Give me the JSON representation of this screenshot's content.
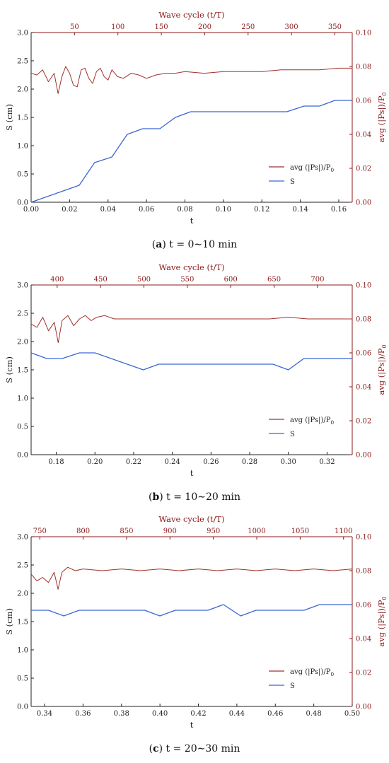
{
  "colors": {
    "pressure": "#a0302a",
    "settlement": "#3a66d6",
    "axis_red": "#8b1a1a",
    "axis": "#222222"
  },
  "chart_data": [
    {
      "type": "line",
      "caption": {
        "label": "a",
        "formula": "t = 0∼10 min"
      },
      "xlabel": "t",
      "x2label": "Wave cycle (t/T)",
      "ylabel": "S (cm)",
      "y2label": "avg (|Ps|)/P",
      "y2label_sub": "0",
      "xlim": [
        0,
        0.167
      ],
      "ylim": [
        0,
        3.0
      ],
      "y2lim": [
        0,
        0.1
      ],
      "x2lim": [
        0,
        370
      ],
      "xticks": [
        "0.00",
        "0.02",
        "0.04",
        "0.06",
        "0.08",
        "0.10",
        "0.12",
        "0.14",
        "0.16"
      ],
      "xtick_values": [
        0,
        0.02,
        0.04,
        0.06,
        0.08,
        0.1,
        0.12,
        0.14,
        0.16
      ],
      "x2ticks": [
        "50",
        "100",
        "150",
        "200",
        "250",
        "300",
        "350"
      ],
      "x2tick_values": [
        50,
        100,
        150,
        200,
        250,
        300,
        350
      ],
      "yticks": [
        "0.0",
        "0.5",
        "1.0",
        "1.5",
        "2.0",
        "2.5",
        "3.0"
      ],
      "ytick_values": [
        0,
        0.5,
        1.0,
        1.5,
        2.0,
        2.5,
        3.0
      ],
      "y2ticks": [
        "0.00",
        "0.02",
        "0.04",
        "0.06",
        "0.08",
        "0.10"
      ],
      "y2tick_values": [
        0,
        0.02,
        0.04,
        0.06,
        0.08,
        0.1
      ],
      "legend": {
        "position": "bottom-right",
        "entries": [
          "avg (|Ps|)/P",
          "S"
        ],
        "sub": "0"
      },
      "series": [
        {
          "name": "avg (|Ps|)/P0",
          "axis": "right",
          "x": [
            0,
            0.003,
            0.006,
            0.009,
            0.012,
            0.014,
            0.016,
            0.018,
            0.02,
            0.022,
            0.024,
            0.026,
            0.028,
            0.03,
            0.032,
            0.034,
            0.036,
            0.038,
            0.04,
            0.042,
            0.045,
            0.048,
            0.052,
            0.056,
            0.06,
            0.065,
            0.07,
            0.075,
            0.08,
            0.09,
            0.1,
            0.11,
            0.12,
            0.13,
            0.14,
            0.15,
            0.16,
            0.167
          ],
          "y": [
            0.076,
            0.075,
            0.078,
            0.071,
            0.076,
            0.064,
            0.074,
            0.08,
            0.076,
            0.069,
            0.068,
            0.078,
            0.079,
            0.073,
            0.07,
            0.077,
            0.079,
            0.074,
            0.072,
            0.078,
            0.074,
            0.073,
            0.076,
            0.075,
            0.073,
            0.075,
            0.076,
            0.076,
            0.077,
            0.076,
            0.077,
            0.077,
            0.077,
            0.078,
            0.078,
            0.078,
            0.079,
            0.079
          ]
        },
        {
          "name": "S",
          "axis": "left",
          "x": [
            0,
            0.025,
            0.033,
            0.042,
            0.05,
            0.058,
            0.067,
            0.075,
            0.083,
            0.092,
            0.133,
            0.142,
            0.15,
            0.158,
            0.167
          ],
          "y": [
            0,
            0.3,
            0.7,
            0.8,
            1.2,
            1.3,
            1.3,
            1.5,
            1.6,
            1.6,
            1.6,
            1.7,
            1.7,
            1.8,
            1.8
          ]
        }
      ]
    },
    {
      "type": "line",
      "caption": {
        "label": "b",
        "formula": "t = 10∼20 min"
      },
      "xlabel": "t",
      "x2label": "Wave cycle (t/T)",
      "ylabel": "S (cm)",
      "y2label": "avg (|Ps|)/P",
      "y2label_sub": "0",
      "xlim": [
        0.167,
        0.333
      ],
      "ylim": [
        0,
        3.0
      ],
      "y2lim": [
        0,
        0.1
      ],
      "x2lim": [
        370,
        740
      ],
      "xticks": [
        "0.18",
        "0.20",
        "0.22",
        "0.24",
        "0.26",
        "0.28",
        "0.30",
        "0.32"
      ],
      "xtick_values": [
        0.18,
        0.2,
        0.22,
        0.24,
        0.26,
        0.28,
        0.3,
        0.32
      ],
      "x2ticks": [
        "400",
        "450",
        "500",
        "550",
        "600",
        "650",
        "700"
      ],
      "x2tick_values": [
        400,
        450,
        500,
        550,
        600,
        650,
        700
      ],
      "yticks": [
        "0.0",
        "0.5",
        "1.0",
        "1.5",
        "2.0",
        "2.5",
        "3.0"
      ],
      "ytick_values": [
        0,
        0.5,
        1.0,
        1.5,
        2.0,
        2.5,
        3.0
      ],
      "y2ticks": [
        "0.00",
        "0.02",
        "0.04",
        "0.06",
        "0.08",
        "0.10"
      ],
      "y2tick_values": [
        0,
        0.02,
        0.04,
        0.06,
        0.08,
        0.1
      ],
      "legend": {
        "position": "bottom-right",
        "entries": [
          "avg (|Ps|)/P",
          "S"
        ],
        "sub": "0"
      },
      "series": [
        {
          "name": "avg (|Ps|)/P0",
          "axis": "right",
          "x": [
            0.167,
            0.17,
            0.173,
            0.176,
            0.179,
            0.181,
            0.183,
            0.186,
            0.189,
            0.192,
            0.195,
            0.198,
            0.201,
            0.205,
            0.21,
            0.22,
            0.23,
            0.24,
            0.25,
            0.26,
            0.27,
            0.28,
            0.29,
            0.3,
            0.31,
            0.32,
            0.333
          ],
          "y": [
            0.077,
            0.075,
            0.081,
            0.073,
            0.078,
            0.066,
            0.079,
            0.082,
            0.076,
            0.08,
            0.082,
            0.079,
            0.081,
            0.082,
            0.08,
            0.08,
            0.08,
            0.08,
            0.08,
            0.08,
            0.08,
            0.08,
            0.08,
            0.081,
            0.08,
            0.08,
            0.08
          ]
        },
        {
          "name": "S",
          "axis": "left",
          "x": [
            0.167,
            0.175,
            0.183,
            0.192,
            0.2,
            0.225,
            0.233,
            0.292,
            0.3,
            0.308,
            0.333
          ],
          "y": [
            1.8,
            1.7,
            1.7,
            1.8,
            1.8,
            1.5,
            1.6,
            1.6,
            1.5,
            1.7,
            1.7
          ]
        }
      ]
    },
    {
      "type": "line",
      "caption": {
        "label": "c",
        "formula": "t = 20∼30 min"
      },
      "xlabel": "t",
      "x2label": "Wave cycle (t/T)",
      "ylabel": "S (cm)",
      "y2label": "avg (|Ps|)/P",
      "y2label_sub": "0",
      "xlim": [
        0.333,
        0.5
      ],
      "ylim": [
        0,
        3.0
      ],
      "y2lim": [
        0,
        0.1
      ],
      "x2lim": [
        740,
        1110
      ],
      "xticks": [
        "0.34",
        "0.36",
        "0.38",
        "0.40",
        "0.42",
        "0.44",
        "0.46",
        "0.48",
        "0.50"
      ],
      "xtick_values": [
        0.34,
        0.36,
        0.38,
        0.4,
        0.42,
        0.44,
        0.46,
        0.48,
        0.5
      ],
      "x2ticks": [
        "750",
        "800",
        "850",
        "900",
        "950",
        "1000",
        "1050",
        "1100"
      ],
      "x2tick_values": [
        750,
        800,
        850,
        900,
        950,
        1000,
        1050,
        1100
      ],
      "yticks": [
        "0.0",
        "0.5",
        "1.0",
        "1.5",
        "2.0",
        "2.5",
        "3.0"
      ],
      "ytick_values": [
        0,
        0.5,
        1.0,
        1.5,
        2.0,
        2.5,
        3.0
      ],
      "y2ticks": [
        "0.00",
        "0.02",
        "0.04",
        "0.06",
        "0.08",
        "0.10"
      ],
      "y2tick_values": [
        0,
        0.02,
        0.04,
        0.06,
        0.08,
        0.1
      ],
      "legend": {
        "position": "bottom-right",
        "entries": [
          "avg (|Ps|)/P",
          "S"
        ],
        "sub": "0"
      },
      "series": [
        {
          "name": "avg (|Ps|)/P0",
          "axis": "right",
          "x": [
            0.333,
            0.336,
            0.339,
            0.342,
            0.345,
            0.347,
            0.349,
            0.352,
            0.356,
            0.36,
            0.37,
            0.38,
            0.39,
            0.4,
            0.41,
            0.42,
            0.43,
            0.44,
            0.45,
            0.46,
            0.47,
            0.48,
            0.49,
            0.5
          ],
          "y": [
            0.078,
            0.074,
            0.076,
            0.073,
            0.079,
            0.069,
            0.079,
            0.082,
            0.08,
            0.081,
            0.08,
            0.081,
            0.08,
            0.081,
            0.08,
            0.081,
            0.08,
            0.081,
            0.08,
            0.081,
            0.08,
            0.081,
            0.08,
            0.081
          ]
        },
        {
          "name": "S",
          "axis": "left",
          "x": [
            0.333,
            0.342,
            0.35,
            0.358,
            0.392,
            0.4,
            0.408,
            0.425,
            0.433,
            0.442,
            0.45,
            0.475,
            0.483,
            0.5
          ],
          "y": [
            1.7,
            1.7,
            1.6,
            1.7,
            1.7,
            1.6,
            1.7,
            1.7,
            1.8,
            1.6,
            1.7,
            1.7,
            1.8,
            1.8
          ]
        }
      ]
    }
  ]
}
